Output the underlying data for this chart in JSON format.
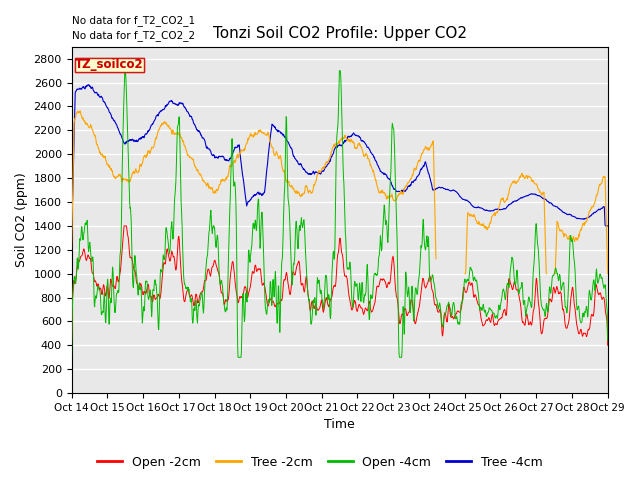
{
  "title": "Tonzi Soil CO2 Profile: Upper CO2",
  "ylabel": "Soil CO2 (ppm)",
  "xlabel": "Time",
  "annotations": [
    "No data for f_T2_CO2_1",
    "No data for f_T2_CO2_2"
  ],
  "legend_label": "TZ_soilco2",
  "legend_entries": [
    "Open -2cm",
    "Tree -2cm",
    "Open -4cm",
    "Tree -4cm"
  ],
  "legend_colors": [
    "#ff0000",
    "#ffa500",
    "#00bb00",
    "#0000cc"
  ],
  "ylim": [
    0,
    2900
  ],
  "yticks": [
    0,
    200,
    400,
    600,
    800,
    1000,
    1200,
    1400,
    1600,
    1800,
    2000,
    2200,
    2400,
    2600,
    2800
  ],
  "x_tick_labels": [
    "Oct 14",
    "Oct 15",
    "Oct 16",
    "Oct 17",
    "Oct 18",
    "Oct 19",
    "Oct 20",
    "Oct 21",
    "Oct 22",
    "Oct 23",
    "Oct 24",
    "Oct 25",
    "Oct 26",
    "Oct 27",
    "Oct 28",
    "Oct 29"
  ],
  "background_color": "#ffffff",
  "plot_bg_color": "#e8e8e8",
  "grid_color": "#ffffff"
}
